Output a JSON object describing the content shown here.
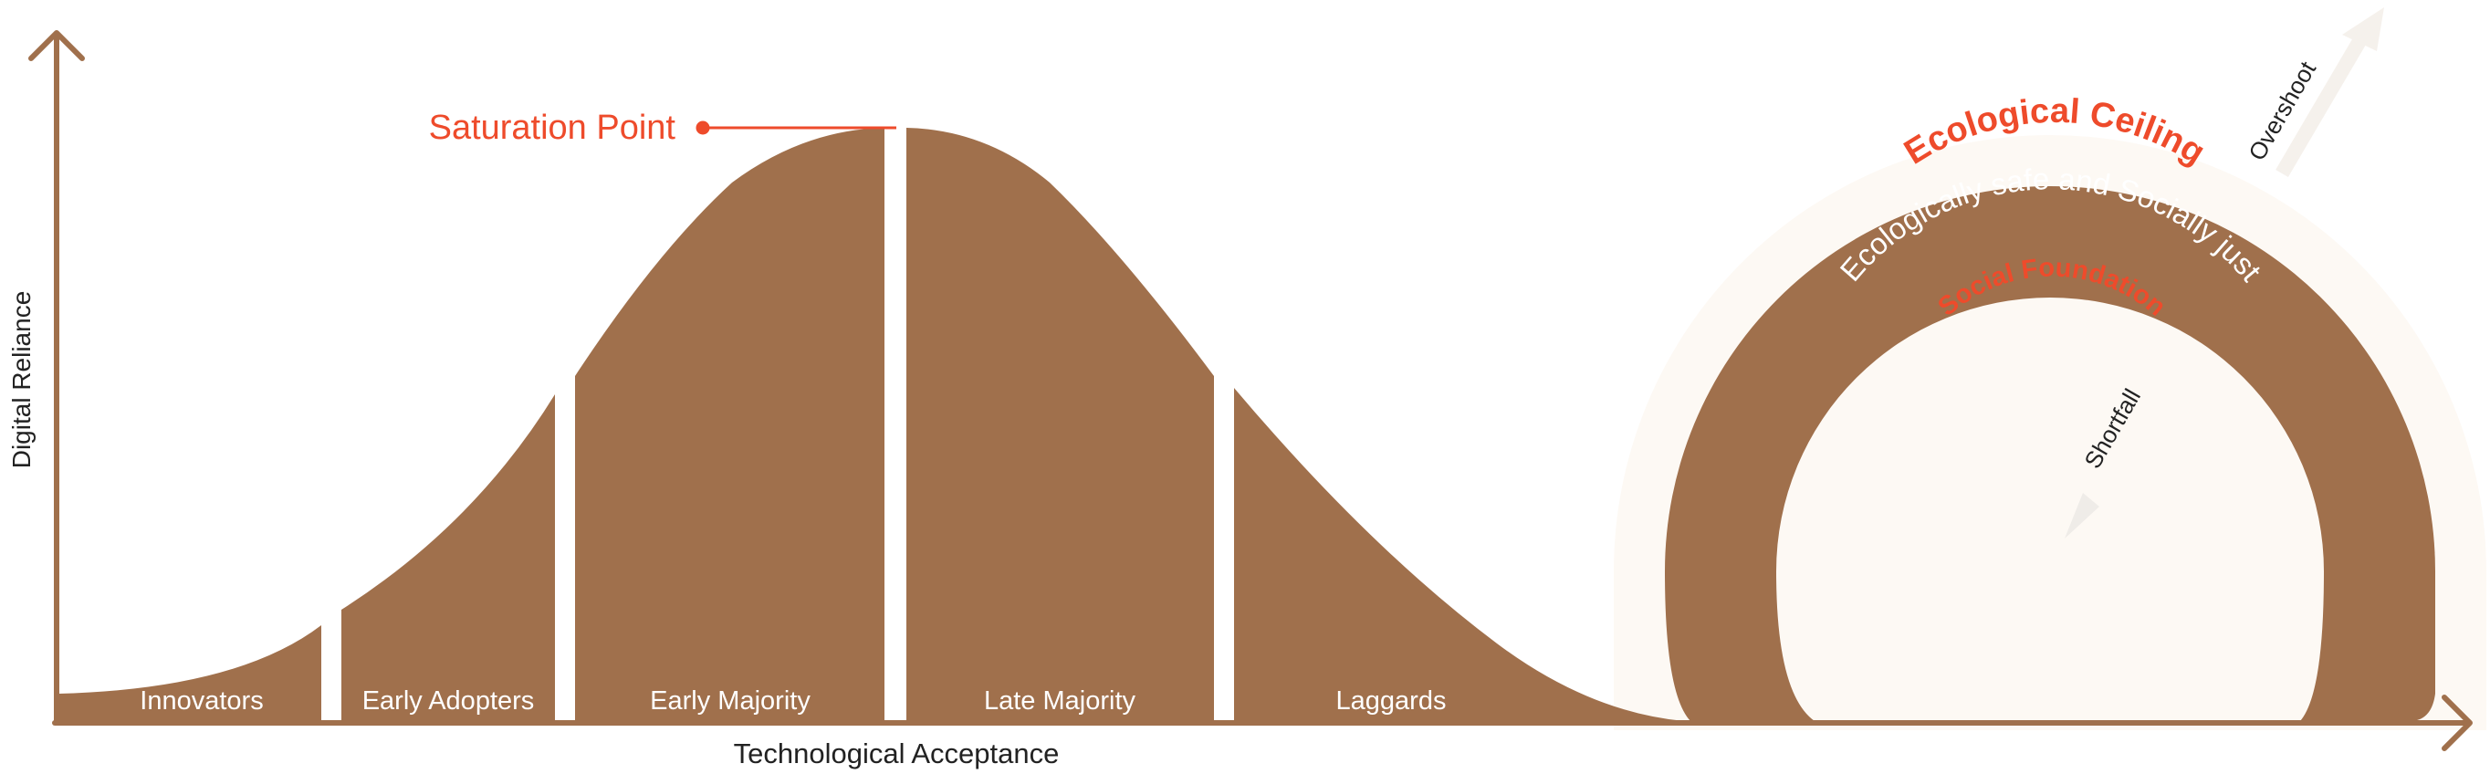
{
  "axes": {
    "y_label": "Digital Reliance",
    "x_label": "Technological Acceptance"
  },
  "adoption_curve": {
    "segments": [
      {
        "label": "Innovators"
      },
      {
        "label": "Early Adopters"
      },
      {
        "label": "Early Majority"
      },
      {
        "label": "Late Majority"
      },
      {
        "label": "Laggards"
      }
    ],
    "peak_label": "Saturation Point"
  },
  "doughnut": {
    "ceiling_label": "Ecological Ceiling",
    "band_label": "Ecologically safe and Socially just",
    "foundation_label": "Social Foundation",
    "overshoot_label": "Overshoot",
    "shortfall_label": "Shortfall"
  },
  "colors": {
    "brown": "#A0704C",
    "accent": "#EE4B2B",
    "halo": "#FDF9F4",
    "text": "#222222",
    "white": "#FFFFFF"
  }
}
